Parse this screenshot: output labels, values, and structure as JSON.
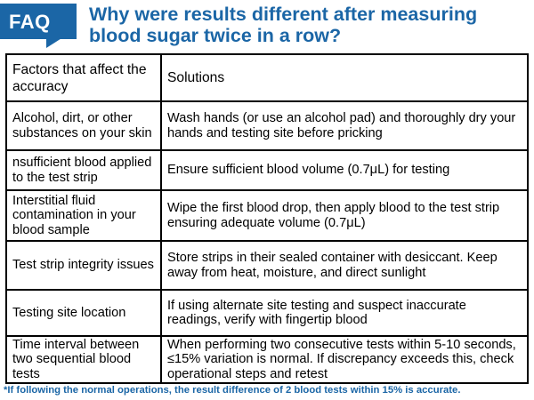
{
  "header": {
    "badge": "FAQ",
    "title": "Why were results different after measuring blood sugar twice in a row?"
  },
  "table": {
    "columns": [
      "Factors that affect the accuracy",
      "Solutions"
    ],
    "rows": [
      {
        "factor": "Alcohol, dirt, or other substances on your skin",
        "solution": "Wash hands (or use an alcohol pad) and thoroughly dry your hands and testing site before pricking"
      },
      {
        "factor": "nsufficient blood applied to the test strip",
        "solution": "Ensure sufficient blood volume (0.7μL) for testing"
      },
      {
        "factor": "Interstitial fluid contamination in your blood sample",
        "solution": "Wipe the first blood drop, then apply blood to the test strip ensuring adequate volume (0.7μL)"
      },
      {
        "factor": "Test strip integrity issues",
        "solution": "Store strips in their sealed container with desiccant. Keep away from heat, moisture, and direct sunlight"
      },
      {
        "factor": "Testing site location",
        "solution": "If using alternate site testing and suspect inaccurate readings, verify with fingertip blood"
      },
      {
        "factor": "Time interval between two sequential blood tests",
        "solution": "When performing two consecutive tests within 5-10 seconds, ≤15% variation is normal. If discrepancy exceeds this, check operational steps and retest"
      }
    ]
  },
  "footnote": "*If following the normal operations, the result difference of 2 blood tests within 15% is accurate.",
  "colors": {
    "accent": "#1b66a6",
    "border": "#000000"
  }
}
